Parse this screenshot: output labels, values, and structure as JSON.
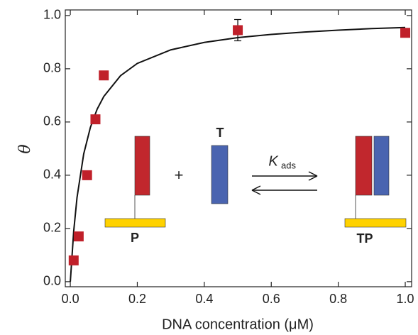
{
  "chart_data": {
    "type": "scatter",
    "x_label": "DNA concentration (μM)",
    "y_label": "θ",
    "xlim": [
      -0.015,
      1.019
    ],
    "ylim": [
      -0.019,
      1.021
    ],
    "xticks": [
      {
        "value": 0,
        "label": "0.0"
      },
      0.2,
      0.4,
      0.6,
      0.8,
      {
        "value": 1,
        "label": "1.0"
      }
    ],
    "yticks": [
      {
        "value": 0,
        "label": "0.0"
      },
      0.2,
      0.4,
      0.6,
      0.8,
      {
        "value": 1,
        "label": "1.0"
      }
    ],
    "series": [
      {
        "color": "#c0202a",
        "x": [
          0.01,
          0.025,
          0.05,
          0.075,
          0.1,
          0.5,
          1.0
        ],
        "values": [
          0.08,
          0.17,
          0.4,
          0.61,
          0.775,
          0.945,
          0.935
        ],
        "errors": [
          null,
          null,
          null,
          null,
          null,
          0.04,
          null
        ]
      }
    ],
    "curve": {
      "color": "#111",
      "x": [
        0,
        0.01,
        0.02,
        0.04,
        0.06,
        0.08,
        0.1,
        0.15,
        0.2,
        0.3,
        0.4,
        0.5,
        0.6,
        0.7,
        0.8,
        0.9,
        1.0
      ],
      "y": [
        0,
        0.188,
        0.316,
        0.48,
        0.58,
        0.648,
        0.696,
        0.774,
        0.82,
        0.871,
        0.899,
        0.917,
        0.929,
        0.938,
        0.945,
        0.951,
        0.955
      ]
    },
    "inset": {
      "plus": "+",
      "target": "T",
      "probe": "P",
      "complex": "TP",
      "constant": "K",
      "constant_subscript": "ads"
    }
  }
}
